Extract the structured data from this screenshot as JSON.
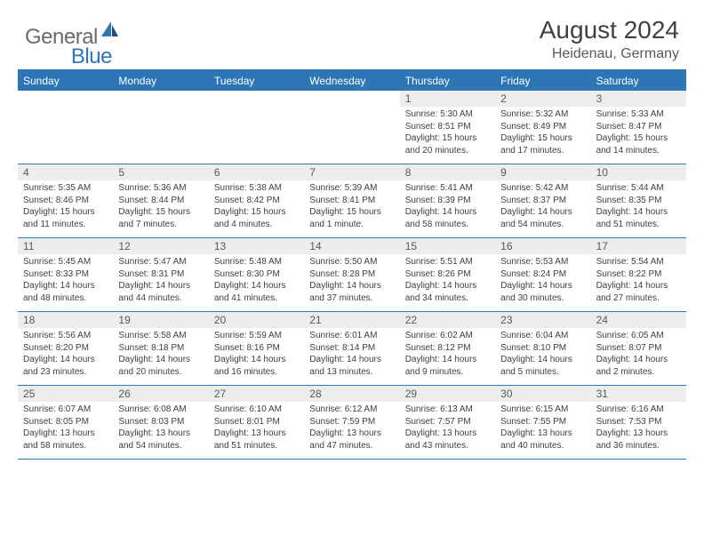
{
  "logo": {
    "general": "General",
    "blue": "Blue"
  },
  "title": "August 2024",
  "location": "Heidenau, Germany",
  "colors": {
    "accent": "#2e75b6",
    "header_bg": "#2e75b6",
    "header_text": "#ffffff",
    "daynum_bg": "#ededed",
    "body_text": "#404040",
    "logo_gray": "#6b6b6b"
  },
  "day_headers": [
    "Sunday",
    "Monday",
    "Tuesday",
    "Wednesday",
    "Thursday",
    "Friday",
    "Saturday"
  ],
  "weeks": [
    [
      {
        "n": "",
        "lines": []
      },
      {
        "n": "",
        "lines": []
      },
      {
        "n": "",
        "lines": []
      },
      {
        "n": "",
        "lines": []
      },
      {
        "n": "1",
        "lines": [
          "Sunrise: 5:30 AM",
          "Sunset: 8:51 PM",
          "Daylight: 15 hours",
          "and 20 minutes."
        ]
      },
      {
        "n": "2",
        "lines": [
          "Sunrise: 5:32 AM",
          "Sunset: 8:49 PM",
          "Daylight: 15 hours",
          "and 17 minutes."
        ]
      },
      {
        "n": "3",
        "lines": [
          "Sunrise: 5:33 AM",
          "Sunset: 8:47 PM",
          "Daylight: 15 hours",
          "and 14 minutes."
        ]
      }
    ],
    [
      {
        "n": "4",
        "lines": [
          "Sunrise: 5:35 AM",
          "Sunset: 8:46 PM",
          "Daylight: 15 hours",
          "and 11 minutes."
        ]
      },
      {
        "n": "5",
        "lines": [
          "Sunrise: 5:36 AM",
          "Sunset: 8:44 PM",
          "Daylight: 15 hours",
          "and 7 minutes."
        ]
      },
      {
        "n": "6",
        "lines": [
          "Sunrise: 5:38 AM",
          "Sunset: 8:42 PM",
          "Daylight: 15 hours",
          "and 4 minutes."
        ]
      },
      {
        "n": "7",
        "lines": [
          "Sunrise: 5:39 AM",
          "Sunset: 8:41 PM",
          "Daylight: 15 hours",
          "and 1 minute."
        ]
      },
      {
        "n": "8",
        "lines": [
          "Sunrise: 5:41 AM",
          "Sunset: 8:39 PM",
          "Daylight: 14 hours",
          "and 58 minutes."
        ]
      },
      {
        "n": "9",
        "lines": [
          "Sunrise: 5:42 AM",
          "Sunset: 8:37 PM",
          "Daylight: 14 hours",
          "and 54 minutes."
        ]
      },
      {
        "n": "10",
        "lines": [
          "Sunrise: 5:44 AM",
          "Sunset: 8:35 PM",
          "Daylight: 14 hours",
          "and 51 minutes."
        ]
      }
    ],
    [
      {
        "n": "11",
        "lines": [
          "Sunrise: 5:45 AM",
          "Sunset: 8:33 PM",
          "Daylight: 14 hours",
          "and 48 minutes."
        ]
      },
      {
        "n": "12",
        "lines": [
          "Sunrise: 5:47 AM",
          "Sunset: 8:31 PM",
          "Daylight: 14 hours",
          "and 44 minutes."
        ]
      },
      {
        "n": "13",
        "lines": [
          "Sunrise: 5:48 AM",
          "Sunset: 8:30 PM",
          "Daylight: 14 hours",
          "and 41 minutes."
        ]
      },
      {
        "n": "14",
        "lines": [
          "Sunrise: 5:50 AM",
          "Sunset: 8:28 PM",
          "Daylight: 14 hours",
          "and 37 minutes."
        ]
      },
      {
        "n": "15",
        "lines": [
          "Sunrise: 5:51 AM",
          "Sunset: 8:26 PM",
          "Daylight: 14 hours",
          "and 34 minutes."
        ]
      },
      {
        "n": "16",
        "lines": [
          "Sunrise: 5:53 AM",
          "Sunset: 8:24 PM",
          "Daylight: 14 hours",
          "and 30 minutes."
        ]
      },
      {
        "n": "17",
        "lines": [
          "Sunrise: 5:54 AM",
          "Sunset: 8:22 PM",
          "Daylight: 14 hours",
          "and 27 minutes."
        ]
      }
    ],
    [
      {
        "n": "18",
        "lines": [
          "Sunrise: 5:56 AM",
          "Sunset: 8:20 PM",
          "Daylight: 14 hours",
          "and 23 minutes."
        ]
      },
      {
        "n": "19",
        "lines": [
          "Sunrise: 5:58 AM",
          "Sunset: 8:18 PM",
          "Daylight: 14 hours",
          "and 20 minutes."
        ]
      },
      {
        "n": "20",
        "lines": [
          "Sunrise: 5:59 AM",
          "Sunset: 8:16 PM",
          "Daylight: 14 hours",
          "and 16 minutes."
        ]
      },
      {
        "n": "21",
        "lines": [
          "Sunrise: 6:01 AM",
          "Sunset: 8:14 PM",
          "Daylight: 14 hours",
          "and 13 minutes."
        ]
      },
      {
        "n": "22",
        "lines": [
          "Sunrise: 6:02 AM",
          "Sunset: 8:12 PM",
          "Daylight: 14 hours",
          "and 9 minutes."
        ]
      },
      {
        "n": "23",
        "lines": [
          "Sunrise: 6:04 AM",
          "Sunset: 8:10 PM",
          "Daylight: 14 hours",
          "and 5 minutes."
        ]
      },
      {
        "n": "24",
        "lines": [
          "Sunrise: 6:05 AM",
          "Sunset: 8:07 PM",
          "Daylight: 14 hours",
          "and 2 minutes."
        ]
      }
    ],
    [
      {
        "n": "25",
        "lines": [
          "Sunrise: 6:07 AM",
          "Sunset: 8:05 PM",
          "Daylight: 13 hours",
          "and 58 minutes."
        ]
      },
      {
        "n": "26",
        "lines": [
          "Sunrise: 6:08 AM",
          "Sunset: 8:03 PM",
          "Daylight: 13 hours",
          "and 54 minutes."
        ]
      },
      {
        "n": "27",
        "lines": [
          "Sunrise: 6:10 AM",
          "Sunset: 8:01 PM",
          "Daylight: 13 hours",
          "and 51 minutes."
        ]
      },
      {
        "n": "28",
        "lines": [
          "Sunrise: 6:12 AM",
          "Sunset: 7:59 PM",
          "Daylight: 13 hours",
          "and 47 minutes."
        ]
      },
      {
        "n": "29",
        "lines": [
          "Sunrise: 6:13 AM",
          "Sunset: 7:57 PM",
          "Daylight: 13 hours",
          "and 43 minutes."
        ]
      },
      {
        "n": "30",
        "lines": [
          "Sunrise: 6:15 AM",
          "Sunset: 7:55 PM",
          "Daylight: 13 hours",
          "and 40 minutes."
        ]
      },
      {
        "n": "31",
        "lines": [
          "Sunrise: 6:16 AM",
          "Sunset: 7:53 PM",
          "Daylight: 13 hours",
          "and 36 minutes."
        ]
      }
    ]
  ]
}
